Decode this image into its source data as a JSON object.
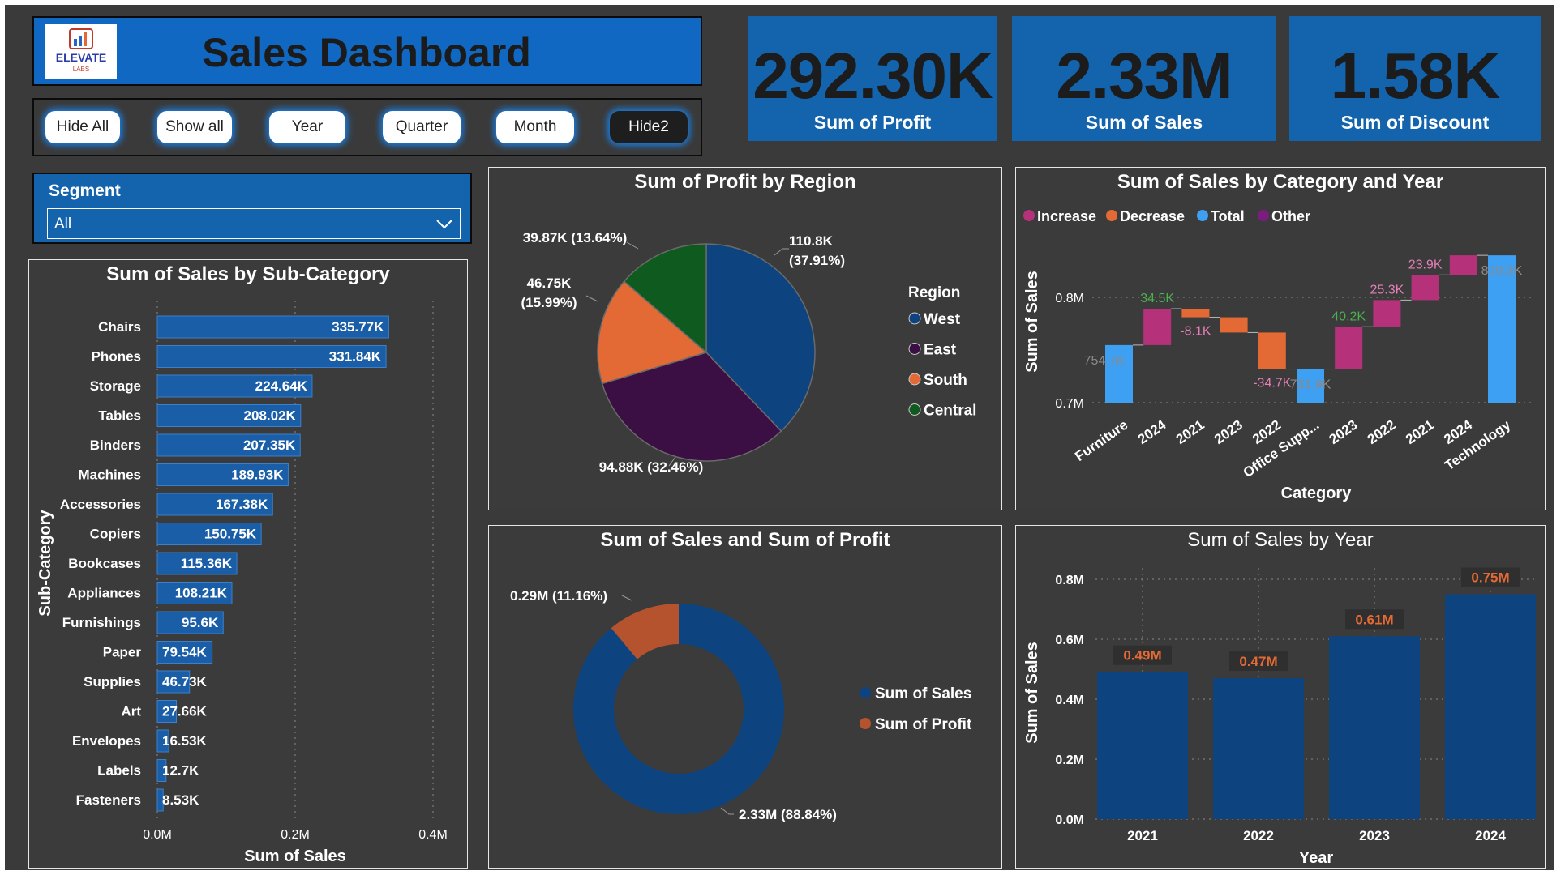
{
  "header": {
    "title": "Sales Dashboard",
    "logo_text": "ELEVATE",
    "logo_sub": "LABS"
  },
  "buttons": [
    "Hide All",
    "Show all",
    "Year",
    "Quarter",
    "Month",
    "Hide2"
  ],
  "kpis": [
    {
      "value": "292.30K",
      "label": "Sum of Profit"
    },
    {
      "value": "2.33M",
      "label": "Sum of Sales"
    },
    {
      "value": "1.58K",
      "label": "Sum of Discount"
    }
  ],
  "segment": {
    "title": "Segment",
    "selected": "All"
  },
  "colors": {
    "accent": "#1464ad",
    "bar": "#1a5ea8",
    "west": "#0d4480",
    "east": "#3b0f43",
    "south": "#e36a34",
    "central": "#0f5a1f",
    "increase": "#b5327a",
    "decrease": "#e36a34",
    "total": "#3ea0f2",
    "profit": "#b5532e"
  },
  "chart_data": [
    {
      "id": "subcategory",
      "type": "bar",
      "orientation": "horizontal",
      "title": "Sum of Sales by Sub-Category",
      "xlabel": "Sum of Sales",
      "ylabel": "Sub-Category",
      "xlim": [
        0,
        0.4
      ],
      "ticks": [
        "0.0M",
        "0.2M",
        "0.4M"
      ],
      "categories": [
        "Chairs",
        "Phones",
        "Storage",
        "Tables",
        "Binders",
        "Machines",
        "Accessories",
        "Copiers",
        "Bookcases",
        "Appliances",
        "Furnishings",
        "Paper",
        "Supplies",
        "Art",
        "Envelopes",
        "Labels",
        "Fasteners"
      ],
      "values": [
        0.33577,
        0.33184,
        0.22464,
        0.20802,
        0.20735,
        0.18993,
        0.16738,
        0.15075,
        0.11536,
        0.10821,
        0.0956,
        0.07954,
        0.04673,
        0.02766,
        0.01653,
        0.0127,
        0.00853
      ],
      "labels": [
        "335.77K",
        "331.84K",
        "224.64K",
        "208.02K",
        "207.35K",
        "189.93K",
        "167.38K",
        "150.75K",
        "115.36K",
        "108.21K",
        "95.6K",
        "79.54K",
        "46.73K",
        "27.66K",
        "16.53K",
        "12.7K",
        "8.53K"
      ]
    },
    {
      "id": "region",
      "type": "pie",
      "title": "Sum of Profit by Region",
      "legend_title": "Region",
      "categories": [
        "West",
        "East",
        "South",
        "Central"
      ],
      "values": [
        110.8,
        94.88,
        46.75,
        39.87
      ],
      "labels": [
        "110.8K (37.91%)",
        "94.88K (32.46%)",
        "46.75K (15.99%)",
        "39.87K (13.64%)"
      ],
      "label_lines": [
        [
          "110.8K",
          "(37.91%)"
        ],
        [
          "94.88K (32.46%)"
        ],
        [
          "46.75K",
          "(15.99%)"
        ],
        [
          "39.87K (13.64%)"
        ]
      ]
    },
    {
      "id": "waterfall",
      "type": "waterfall",
      "title": "Sum of Sales by Category and Year",
      "xlabel": "Category",
      "ylabel": "Sum of Sales",
      "ylim": [
        0.7,
        0.84
      ],
      "ticks": [
        "0.7M",
        "0.8M"
      ],
      "legend": [
        "Increase",
        "Decrease",
        "Total",
        "Other"
      ],
      "categories": [
        "Furniture",
        "2024",
        "2021",
        "2023",
        "2022",
        "Office Supp...",
        "2023",
        "2022",
        "2021",
        "2024",
        "Technology"
      ],
      "kinds": [
        "total",
        "increase",
        "decrease",
        "decrease",
        "decrease",
        "total",
        "increase",
        "increase",
        "increase",
        "increase",
        "total"
      ],
      "start": [
        0.7,
        0.7547,
        0.7892,
        0.7811,
        0.7666,
        0.7,
        0.7319,
        0.7721,
        0.7974,
        0.8213,
        0.7
      ],
      "end": [
        0.7547,
        0.7892,
        0.7811,
        0.7666,
        0.7319,
        0.7319,
        0.7721,
        0.7974,
        0.8213,
        0.8399,
        0.8399
      ],
      "labels": [
        "754.7K",
        "34.5K",
        "-8.1K",
        "",
        "-34.7K",
        "731.9K",
        "40.2K",
        "25.3K",
        "23.9K",
        "",
        "839.9K"
      ]
    },
    {
      "id": "sales_profit",
      "type": "donut",
      "title": "Sum of Sales and Sum of Profit",
      "categories": [
        "Sum of Sales",
        "Sum of Profit"
      ],
      "values": [
        2.33,
        0.29
      ],
      "labels": [
        "2.33M (88.84%)",
        "0.29M (11.16%)"
      ]
    },
    {
      "id": "year",
      "type": "bar",
      "title": "Sum of Sales by Year",
      "xlabel": "Year",
      "ylabel": "Sum of Sales",
      "ylim": [
        0,
        0.8
      ],
      "ticks": [
        "0.0M",
        "0.2M",
        "0.4M",
        "0.6M",
        "0.8M"
      ],
      "categories": [
        "2021",
        "2022",
        "2023",
        "2024"
      ],
      "values": [
        0.49,
        0.47,
        0.61,
        0.75
      ],
      "labels": [
        "0.49M",
        "0.47M",
        "0.61M",
        "0.75M"
      ]
    }
  ]
}
